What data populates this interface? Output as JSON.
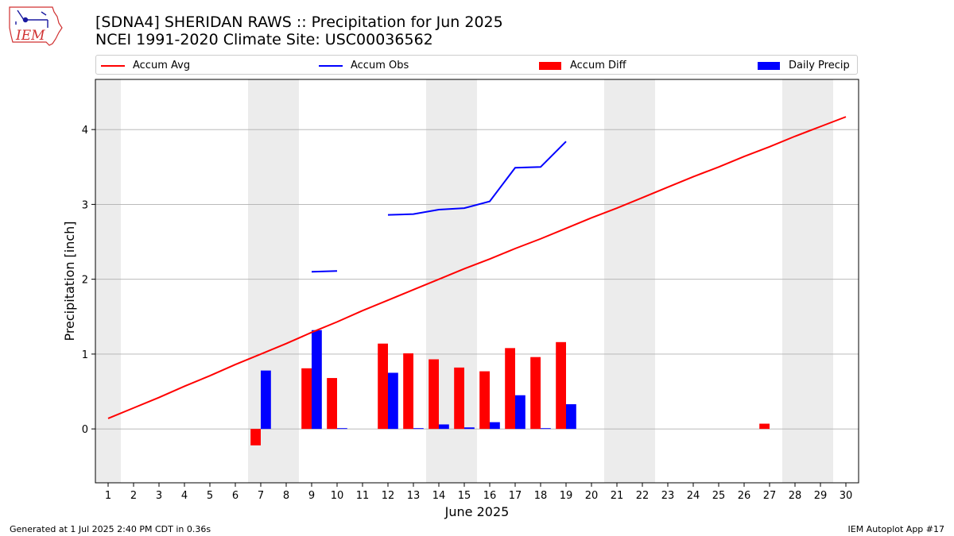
{
  "header": {
    "title_line1": "[SDNA4] SHERIDAN RAWS :: Precipitation for Jun 2025",
    "title_line2": "NCEI 1991-2020 Climate Site: USC00036562"
  },
  "logo": {
    "text": "IEM",
    "color": "#d03030"
  },
  "footer": {
    "generated": "Generated at 1 Jul 2025 2:40 PM CDT in 0.36s",
    "app": "IEM Autoplot App #17"
  },
  "colors": {
    "avg": "#ff0000",
    "obs": "#0000ff",
    "diff": "#ff0000",
    "daily": "#0000ff",
    "weekend": "#ececec",
    "grid": "#b0b0b0"
  },
  "chart_data": {
    "type": "bar",
    "xlabel": "June 2025",
    "ylabel": "Precipitation [inch]",
    "ylim": [
      -0.72,
      4.67
    ],
    "yticks": [
      0,
      1,
      2,
      3,
      4
    ],
    "xlim": [
      0.5,
      30.5
    ],
    "x": [
      1,
      2,
      3,
      4,
      5,
      6,
      7,
      8,
      9,
      10,
      11,
      12,
      13,
      14,
      15,
      16,
      17,
      18,
      19,
      20,
      21,
      22,
      23,
      24,
      25,
      26,
      27,
      28,
      29,
      30
    ],
    "weekend_days": [
      1,
      7,
      8,
      14,
      15,
      21,
      22,
      28,
      29
    ],
    "grid": true,
    "legend": "top, above plot",
    "series": [
      {
        "name": "Accum Avg",
        "kind": "line",
        "values": [
          0.14,
          0.28,
          0.42,
          0.57,
          0.71,
          0.86,
          1.0,
          1.14,
          1.29,
          1.43,
          1.58,
          1.72,
          1.86,
          2.0,
          2.14,
          2.27,
          2.41,
          2.54,
          2.68,
          2.82,
          2.95,
          3.09,
          3.23,
          3.37,
          3.5,
          3.64,
          3.77,
          3.91,
          4.04,
          4.17
        ]
      },
      {
        "name": "Accum Obs",
        "kind": "line",
        "values": [
          null,
          null,
          null,
          null,
          null,
          null,
          null,
          null,
          2.1,
          2.11,
          null,
          2.86,
          2.87,
          2.93,
          2.95,
          3.04,
          3.49,
          3.5,
          3.84,
          null,
          null,
          null,
          null,
          null,
          null,
          null,
          null,
          null,
          null,
          null
        ]
      },
      {
        "name": "Accum Diff",
        "kind": "bar",
        "values": [
          null,
          null,
          null,
          null,
          null,
          null,
          -0.22,
          null,
          0.81,
          0.68,
          null,
          1.14,
          1.01,
          0.93,
          0.82,
          0.77,
          1.08,
          0.96,
          1.16,
          null,
          null,
          null,
          null,
          null,
          null,
          null,
          0.07,
          null,
          null,
          null
        ]
      },
      {
        "name": "Daily Precip",
        "kind": "bar",
        "values": [
          null,
          null,
          null,
          null,
          null,
          null,
          0.78,
          null,
          1.32,
          0.01,
          null,
          0.75,
          0.01,
          0.06,
          0.02,
          0.09,
          0.45,
          0.01,
          0.33,
          null,
          null,
          null,
          null,
          null,
          null,
          null,
          null,
          null,
          null,
          null
        ]
      }
    ]
  }
}
